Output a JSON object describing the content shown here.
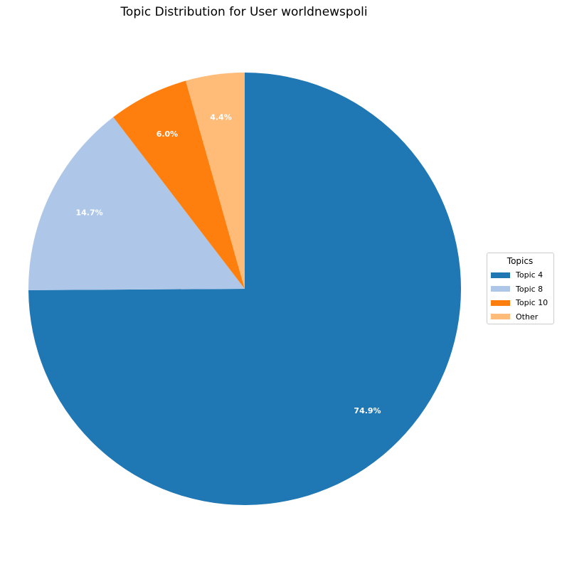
{
  "chart_data": {
    "type": "pie",
    "title": "Topic Distribution for User worldnewspoli",
    "start_angle_deg": 90,
    "direction": "clockwise",
    "slices": [
      {
        "label": "Topic 4",
        "value": 74.9,
        "pct_label": "74.9%",
        "color": "#1f77b4"
      },
      {
        "label": "Topic 8",
        "value": 14.7,
        "pct_label": "14.7%",
        "color": "#aec7e8"
      },
      {
        "label": "Topic 10",
        "value": 6.0,
        "pct_label": "6.0%",
        "color": "#ff7f0e"
      },
      {
        "label": "Other",
        "value": 4.4,
        "pct_label": "4.4%",
        "color": "#ffbb78"
      }
    ],
    "legend": {
      "title": "Topics",
      "placement": "right"
    }
  }
}
